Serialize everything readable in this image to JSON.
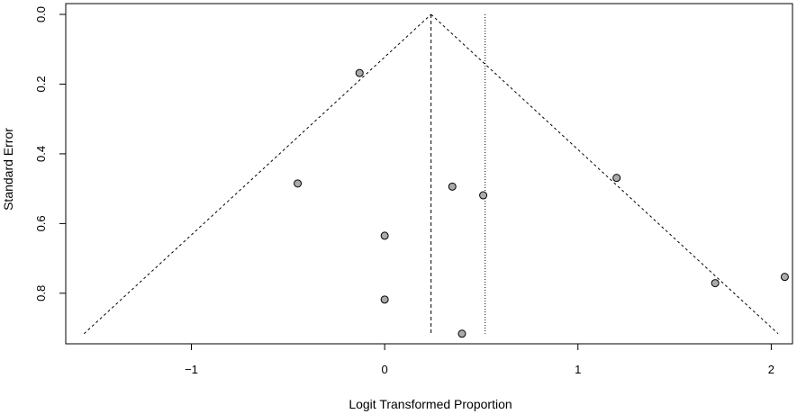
{
  "chart_data": {
    "type": "scatter",
    "title": "",
    "xlabel": "Logit Transformed Proportion",
    "ylabel": "Standard Error",
    "xlim": [
      -1.65,
      2.11
    ],
    "ylim": [
      0.0,
      0.945
    ],
    "y_inverted": true,
    "grid": false,
    "x_ticks": [
      -1,
      0,
      1,
      2
    ],
    "x_tick_labels": [
      "−1",
      "0",
      "1",
      "2"
    ],
    "y_ticks": [
      0.0,
      0.2,
      0.4,
      0.6,
      0.8
    ],
    "y_tick_labels": [
      "0.0",
      "0.2",
      "0.4",
      "0.6",
      "0.8"
    ],
    "points": [
      {
        "x": -0.13,
        "y": 0.168
      },
      {
        "x": -0.45,
        "y": 0.485
      },
      {
        "x": 0.0,
        "y": 0.635
      },
      {
        "x": 0.0,
        "y": 0.818
      },
      {
        "x": 0.35,
        "y": 0.494
      },
      {
        "x": 0.51,
        "y": 0.519
      },
      {
        "x": 0.4,
        "y": 0.916
      },
      {
        "x": 1.2,
        "y": 0.469
      },
      {
        "x": 1.71,
        "y": 0.771
      },
      {
        "x": 2.07,
        "y": 0.753
      }
    ],
    "pooled_estimate": 0.24,
    "reference_line": 0.52,
    "funnel_max_se": 0.916,
    "funnel_z": 1.96,
    "point_color": "#aaaaaa",
    "line_color": "#000000"
  }
}
